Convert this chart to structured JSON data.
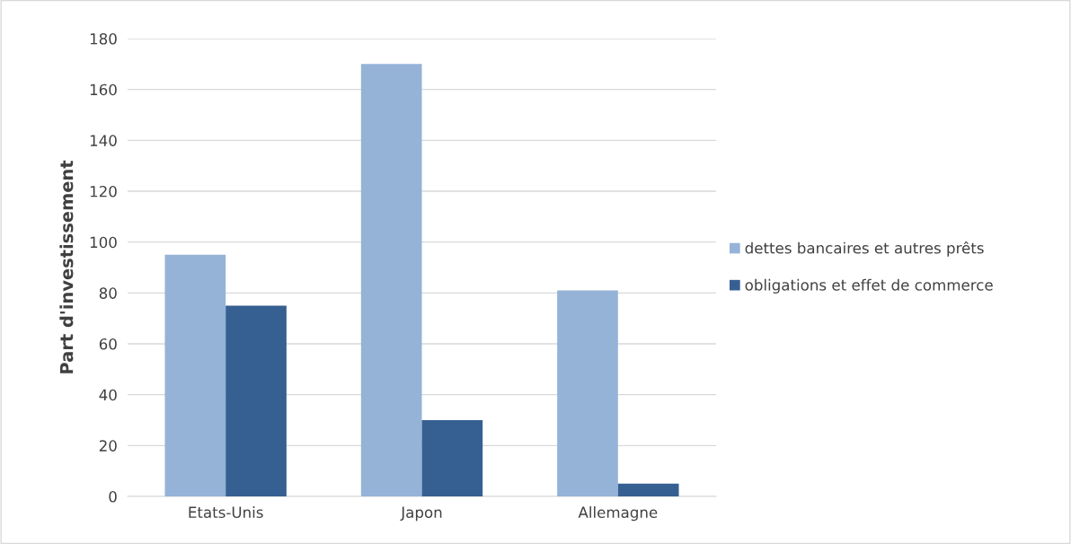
{
  "chart_data": {
    "type": "bar",
    "ylabel": "Part d'investissement",
    "categories": [
      "Etats-Unis",
      "Japon",
      "Allemagne"
    ],
    "series": [
      {
        "name": "dettes bancaires et autres prêts",
        "color": "#95b3d7",
        "values": [
          95,
          170,
          81
        ]
      },
      {
        "name": "obligations et effet de commerce",
        "color": "#376092",
        "values": [
          75,
          30,
          5
        ]
      }
    ],
    "ylim": [
      0,
      180
    ],
    "yticks": [
      0,
      20,
      40,
      60,
      80,
      100,
      120,
      140,
      160,
      180
    ],
    "grid": "y",
    "legend": "right"
  }
}
